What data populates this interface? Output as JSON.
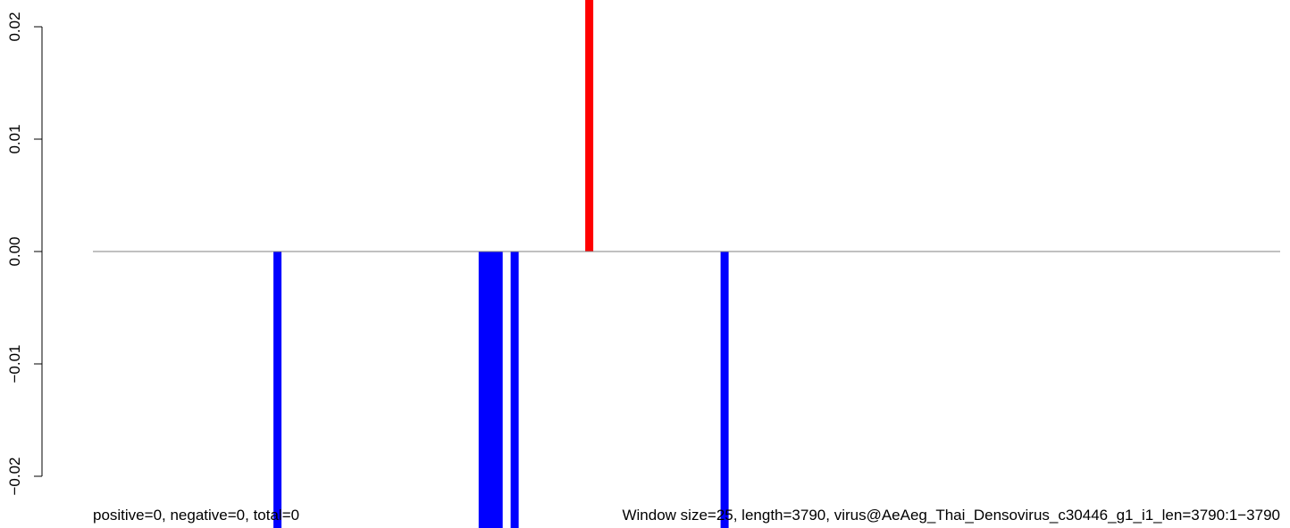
{
  "chart_data": {
    "type": "bar",
    "x_range": [
      1,
      3790
    ],
    "ylim": [
      -0.02,
      0.02
    ],
    "yticks": [
      -0.02,
      -0.01,
      0.0,
      0.01,
      0.02
    ],
    "ytick_labels": [
      "−0.02",
      "−0.01",
      "0.00",
      "0.01",
      "0.02"
    ],
    "positive_color": "#ff0000",
    "negative_color": "#0000ff",
    "baseline_color": "#808080",
    "bars": [
      {
        "x": 590,
        "value": -0.025
      },
      {
        "x": 1245,
        "value": -0.025
      },
      {
        "x": 1262,
        "value": -0.025
      },
      {
        "x": 1279,
        "value": -0.025
      },
      {
        "x": 1296,
        "value": -0.025
      },
      {
        "x": 1347,
        "value": -0.025
      },
      {
        "x": 1585,
        "value": 0.025
      },
      {
        "x": 2017,
        "value": -0.025
      }
    ],
    "footer_left": "positive=0, negative=0, total=0",
    "footer_right": "Window size=25, length=3790, virus@AeAeg_Thai_Densovirus_c30446_g1_i1_len=3790:1−3790"
  }
}
